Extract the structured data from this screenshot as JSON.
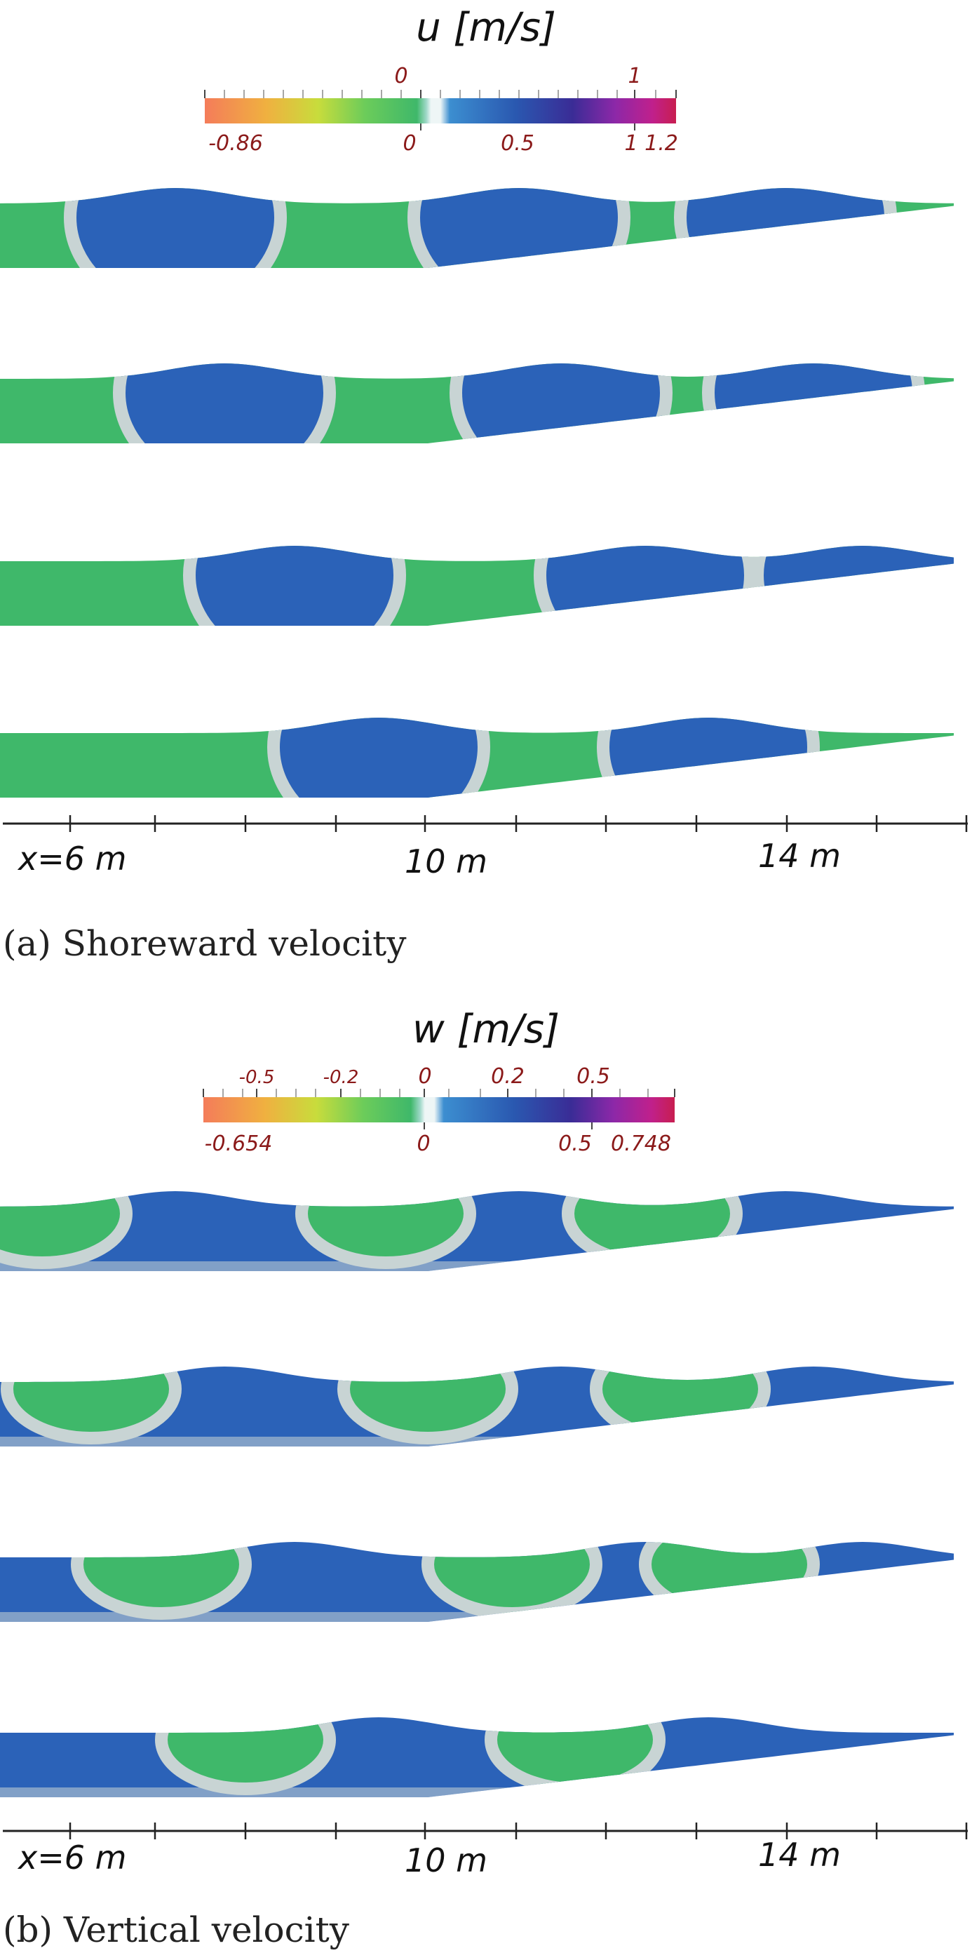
{
  "panels": [
    {
      "id": "a",
      "title": "u [m/s]",
      "caption": "(a) Shoreward velocity",
      "colorbar": {
        "min": -0.86,
        "max": 1.2,
        "top_ticks": [
          {
            "label": "0",
            "value": 0
          },
          {
            "label": "1",
            "value": 1
          }
        ],
        "bottom_ticks": [
          {
            "label": "-0.86",
            "value": -0.86
          },
          {
            "label": "0",
            "value": 0
          },
          {
            "label": "0.5",
            "value": 0.5
          },
          {
            "label": "1",
            "value": 1
          },
          {
            "label": "1.2",
            "value": 1.2
          }
        ],
        "colors": {
          "negative_max": "#f47c5a",
          "neg_mid": "#c8dc3c",
          "near_zero_neg": "#58c070",
          "zero": "#e6f2f2",
          "near_zero_pos": "#3a86cc",
          "pos_mid": "#1e3c9a",
          "pos_high": "#7a28a6",
          "positive_max": "#c81e50"
        }
      },
      "snapshots": 4,
      "x_axis": {
        "labels": [
          {
            "text": "x=6 m",
            "x": 6
          },
          {
            "text": "10 m",
            "x": 10
          },
          {
            "text": "14 m",
            "x": 14
          }
        ]
      }
    },
    {
      "id": "b",
      "title": "w [m/s]",
      "caption": "(b) Vertical velocity",
      "colorbar": {
        "min": -0.654,
        "max": 0.748,
        "top_ticks": [
          {
            "label": "-0.5",
            "value": -0.5
          },
          {
            "label": "-0.2",
            "value": -0.2
          },
          {
            "label": "0",
            "value": 0
          },
          {
            "label": "0.2",
            "value": 0.2
          },
          {
            "label": "0.5",
            "value": 0.5
          }
        ],
        "bottom_ticks": [
          {
            "label": "-0.654",
            "value": -0.654
          },
          {
            "label": "0",
            "value": 0
          },
          {
            "label": "0.5",
            "value": 0.5
          },
          {
            "label": "0.748",
            "value": 0.748
          }
        ],
        "colors": {
          "negative_max": "#f47c5a",
          "neg_mid": "#c8dc3c",
          "near_zero_neg": "#58c070",
          "zero": "#e6f2f2",
          "near_zero_pos": "#3a86cc",
          "pos_mid": "#1e3c9a",
          "pos_high": "#7a28a6",
          "positive_max": "#c81e50"
        }
      },
      "snapshots": 4,
      "x_axis": {
        "labels": [
          {
            "text": "x=6 m",
            "x": 6
          },
          {
            "text": "10 m",
            "x": 10
          },
          {
            "text": "14 m",
            "x": 14
          }
        ]
      }
    }
  ],
  "colors": {
    "water_green": "#3fb86a",
    "water_blue": "#2b62b8",
    "transition": "#c8d4d4",
    "axis": "#222222"
  }
}
